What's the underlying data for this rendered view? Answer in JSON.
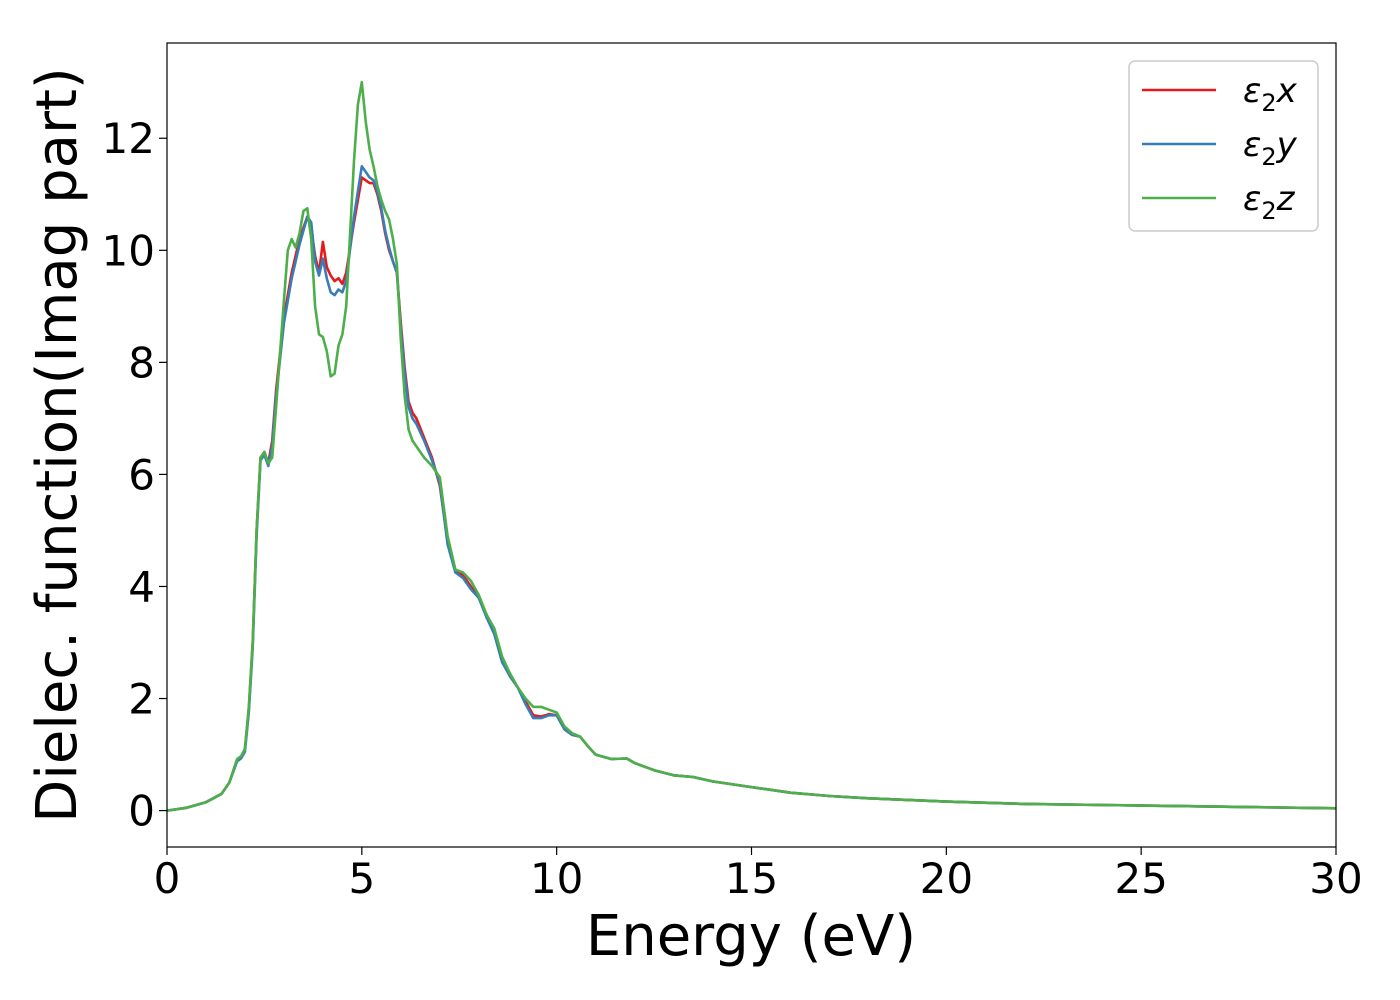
{
  "chart_data": {
    "type": "line",
    "xlabel": "Energy (eV)",
    "ylabel": "Dielec. function(Imag part)",
    "xlim": [
      0,
      30
    ],
    "ylim": [
      -0.65,
      13.7
    ],
    "xticks": [
      0,
      5,
      10,
      15,
      20,
      25,
      30
    ],
    "yticks": [
      0,
      2,
      4,
      6,
      8,
      10,
      12
    ],
    "grid": false,
    "legend_position": "top-right",
    "series": [
      {
        "name": "ε₂x",
        "legend_base": "ε",
        "legend_sub": "2",
        "legend_tail": "x",
        "color": "#e41a1c",
        "x": [
          0,
          0.5,
          1.0,
          1.4,
          1.6,
          1.8,
          1.9,
          2.0,
          2.1,
          2.2,
          2.3,
          2.4,
          2.5,
          2.6,
          2.7,
          2.8,
          3.0,
          3.2,
          3.4,
          3.6,
          3.7,
          3.8,
          3.9,
          4.0,
          4.1,
          4.2,
          4.3,
          4.4,
          4.5,
          4.6,
          4.8,
          5.0,
          5.1,
          5.2,
          5.3,
          5.4,
          5.5,
          5.6,
          5.7,
          5.8,
          5.9,
          6.0,
          6.1,
          6.2,
          6.3,
          6.4,
          6.6,
          6.8,
          7.0,
          7.2,
          7.4,
          7.6,
          7.8,
          8.0,
          8.2,
          8.4,
          8.6,
          8.8,
          9.0,
          9.2,
          9.4,
          9.6,
          9.8,
          10.0,
          10.2,
          10.4,
          10.6,
          10.8,
          11.0,
          11.4,
          11.8,
          12.0,
          12.5,
          13.0,
          13.5,
          14.0,
          15.0,
          16.0,
          17.0,
          18.0,
          19.0,
          20.0,
          22.0,
          24.0,
          26.0,
          28.0,
          30.0
        ],
        "y": [
          0.0,
          0.05,
          0.15,
          0.3,
          0.5,
          0.9,
          0.95,
          1.1,
          1.8,
          3.0,
          5.0,
          6.3,
          6.4,
          6.2,
          6.6,
          7.5,
          8.8,
          9.6,
          10.2,
          10.6,
          10.4,
          9.9,
          9.6,
          10.15,
          9.7,
          9.55,
          9.45,
          9.5,
          9.4,
          9.6,
          10.5,
          11.3,
          11.25,
          11.2,
          11.2,
          11.0,
          10.7,
          10.3,
          10.0,
          9.8,
          9.6,
          8.7,
          7.9,
          7.3,
          7.1,
          7.0,
          6.65,
          6.3,
          5.8,
          4.8,
          4.3,
          4.2,
          4.0,
          3.8,
          3.5,
          3.2,
          2.7,
          2.4,
          2.2,
          1.95,
          1.7,
          1.68,
          1.72,
          1.7,
          1.45,
          1.35,
          1.32,
          1.15,
          1.0,
          0.92,
          0.93,
          0.85,
          0.72,
          0.63,
          0.6,
          0.52,
          0.42,
          0.32,
          0.26,
          0.22,
          0.19,
          0.16,
          0.12,
          0.1,
          0.08,
          0.06,
          0.04
        ]
      },
      {
        "name": "ε₂y",
        "legend_base": "ε",
        "legend_sub": "2",
        "legend_tail": "y",
        "color": "#377eb8",
        "x": [
          0,
          0.5,
          1.0,
          1.4,
          1.6,
          1.8,
          1.9,
          2.0,
          2.1,
          2.2,
          2.3,
          2.4,
          2.5,
          2.6,
          2.7,
          2.8,
          3.0,
          3.2,
          3.4,
          3.6,
          3.7,
          3.8,
          3.9,
          4.0,
          4.1,
          4.2,
          4.3,
          4.4,
          4.5,
          4.6,
          4.8,
          5.0,
          5.1,
          5.2,
          5.3,
          5.4,
          5.5,
          5.6,
          5.7,
          5.8,
          5.9,
          6.0,
          6.1,
          6.2,
          6.3,
          6.4,
          6.6,
          6.8,
          7.0,
          7.2,
          7.4,
          7.6,
          7.8,
          8.0,
          8.2,
          8.4,
          8.6,
          8.8,
          9.0,
          9.2,
          9.4,
          9.6,
          9.8,
          10.0,
          10.2,
          10.4,
          10.6,
          10.8,
          11.0,
          11.4,
          11.8,
          12.0,
          12.5,
          13.0,
          13.5,
          14.0,
          15.0,
          16.0,
          17.0,
          18.0,
          19.0,
          20.0,
          22.0,
          24.0,
          26.0,
          28.0,
          30.0
        ],
        "y": [
          0.0,
          0.05,
          0.15,
          0.3,
          0.5,
          0.88,
          0.93,
          1.05,
          1.75,
          2.9,
          4.9,
          6.25,
          6.35,
          6.15,
          6.5,
          7.4,
          8.7,
          9.5,
          10.1,
          10.6,
          10.5,
          9.8,
          9.55,
          9.85,
          9.5,
          9.25,
          9.2,
          9.3,
          9.25,
          9.45,
          10.6,
          11.5,
          11.4,
          11.3,
          11.25,
          11.05,
          10.75,
          10.35,
          10.05,
          9.8,
          9.6,
          8.6,
          7.8,
          7.2,
          7.0,
          6.9,
          6.6,
          6.25,
          5.85,
          4.75,
          4.25,
          4.15,
          3.95,
          3.8,
          3.45,
          3.15,
          2.65,
          2.4,
          2.2,
          1.9,
          1.65,
          1.65,
          1.7,
          1.7,
          1.45,
          1.35,
          1.32,
          1.15,
          1.0,
          0.92,
          0.93,
          0.85,
          0.72,
          0.63,
          0.6,
          0.52,
          0.42,
          0.32,
          0.26,
          0.22,
          0.19,
          0.16,
          0.12,
          0.1,
          0.08,
          0.06,
          0.04
        ]
      },
      {
        "name": "ε₂z",
        "legend_base": "ε",
        "legend_sub": "2",
        "legend_tail": "z",
        "color": "#4daf4a",
        "x": [
          0,
          0.5,
          1.0,
          1.4,
          1.6,
          1.8,
          1.9,
          2.0,
          2.1,
          2.2,
          2.3,
          2.4,
          2.5,
          2.6,
          2.7,
          2.8,
          3.0,
          3.1,
          3.2,
          3.3,
          3.4,
          3.5,
          3.6,
          3.7,
          3.8,
          3.9,
          4.0,
          4.1,
          4.2,
          4.3,
          4.4,
          4.5,
          4.6,
          4.7,
          4.8,
          4.9,
          5.0,
          5.1,
          5.2,
          5.3,
          5.4,
          5.5,
          5.6,
          5.7,
          5.8,
          5.9,
          6.0,
          6.1,
          6.2,
          6.3,
          6.4,
          6.6,
          6.8,
          7.0,
          7.2,
          7.4,
          7.6,
          7.8,
          8.0,
          8.2,
          8.4,
          8.6,
          8.8,
          9.0,
          9.2,
          9.4,
          9.6,
          9.8,
          10.0,
          10.2,
          10.4,
          10.6,
          10.8,
          11.0,
          11.4,
          11.8,
          12.0,
          12.5,
          13.0,
          13.5,
          14.0,
          15.0,
          16.0,
          17.0,
          18.0,
          19.0,
          20.0,
          22.0,
          24.0,
          26.0,
          28.0,
          30.0
        ],
        "y": [
          0.0,
          0.05,
          0.15,
          0.3,
          0.5,
          0.92,
          0.97,
          1.1,
          1.85,
          3.0,
          5.0,
          6.3,
          6.4,
          6.2,
          6.3,
          7.2,
          9.1,
          10.0,
          10.2,
          10.05,
          10.3,
          10.7,
          10.75,
          10.2,
          9.0,
          8.5,
          8.45,
          8.2,
          7.75,
          7.8,
          8.3,
          8.5,
          9.0,
          10.3,
          11.6,
          12.6,
          13.0,
          12.3,
          11.8,
          11.5,
          11.15,
          10.9,
          10.7,
          10.55,
          10.2,
          9.75,
          8.4,
          7.4,
          6.8,
          6.6,
          6.5,
          6.3,
          6.15,
          5.95,
          4.9,
          4.3,
          4.25,
          4.1,
          3.85,
          3.5,
          3.25,
          2.75,
          2.45,
          2.2,
          2.0,
          1.85,
          1.85,
          1.8,
          1.75,
          1.5,
          1.38,
          1.32,
          1.15,
          1.0,
          0.92,
          0.93,
          0.85,
          0.72,
          0.63,
          0.6,
          0.52,
          0.42,
          0.32,
          0.26,
          0.22,
          0.19,
          0.16,
          0.12,
          0.1,
          0.08,
          0.06,
          0.04
        ]
      }
    ]
  }
}
